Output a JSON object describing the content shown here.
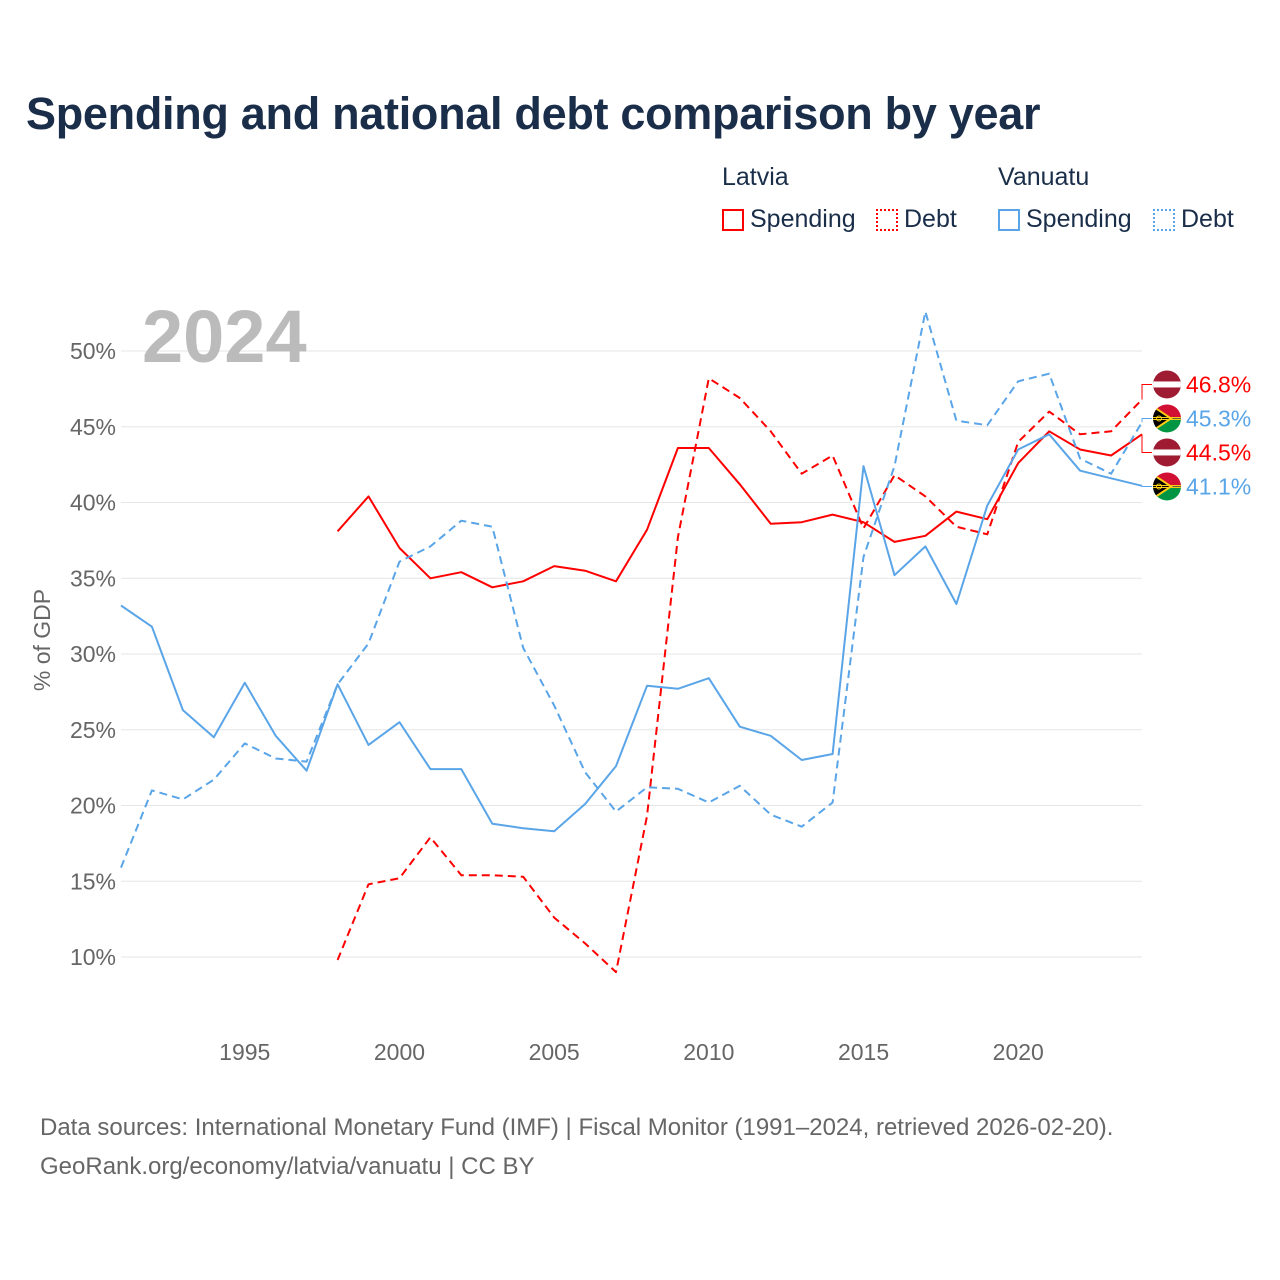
{
  "title": "Spending and national debt comparison by year",
  "legend": {
    "groups": [
      {
        "country": "Latvia",
        "items": [
          {
            "label": "Spending",
            "style": "solid",
            "color": "#ff0000"
          },
          {
            "label": "Debt",
            "style": "dotted",
            "color": "#ff0000"
          }
        ]
      },
      {
        "country": "Vanuatu",
        "items": [
          {
            "label": "Spending",
            "style": "solid",
            "color": "#5aa5e8"
          },
          {
            "label": "Debt",
            "style": "dotted",
            "color": "#5aa5e8"
          }
        ]
      }
    ]
  },
  "year_label": "2024",
  "source": {
    "line1": "Data sources: International Monetary Fund (IMF) | Fiscal Monitor (1991–2024, retrieved 2026-02-20).",
    "line2": "GeoRank.org/economy/latvia/vanuatu | CC BY"
  },
  "chart_data": {
    "type": "line",
    "title": "Spending and national debt comparison by year",
    "xlabel": "",
    "ylabel": "% of GDP",
    "xlim": [
      1991,
      2024
    ],
    "ylim": [
      10,
      50
    ],
    "x_ticks": [
      "1995",
      "2000",
      "2005",
      "2010",
      "2015",
      "2020"
    ],
    "y_ticks": [
      "10%",
      "15%",
      "20%",
      "25%",
      "30%",
      "35%",
      "40%",
      "45%",
      "50%"
    ],
    "grid": true,
    "legend_position": "top-right",
    "series": [
      {
        "name": "Latvia Spending",
        "country": "Latvia",
        "color": "#ff0000",
        "dash": false,
        "end_label": "44.5%",
        "start_year": 1998,
        "values": [
          38.1,
          40.4,
          37.0,
          35.0,
          35.4,
          34.4,
          34.8,
          35.8,
          35.5,
          34.8,
          38.2,
          43.6,
          43.6,
          41.2,
          38.6,
          38.7,
          39.2,
          38.7,
          37.4,
          37.8,
          39.4,
          38.9,
          42.6,
          44.7,
          43.5,
          43.1,
          44.5
        ]
      },
      {
        "name": "Latvia Debt",
        "country": "Latvia",
        "color": "#ff0000",
        "dash": true,
        "end_label": "46.8%",
        "start_year": 1998,
        "values": [
          9.8,
          14.8,
          15.2,
          17.9,
          15.4,
          15.4,
          15.3,
          12.6,
          10.9,
          9.0,
          19.3,
          37.7,
          48.2,
          46.9,
          44.7,
          41.9,
          43.1,
          38.3,
          41.8,
          40.4,
          38.4,
          37.9,
          44.0,
          46.0,
          44.5,
          44.7,
          46.8
        ]
      },
      {
        "name": "Vanuatu Spending",
        "country": "Vanuatu",
        "color": "#5aa5e8",
        "dash": false,
        "end_label": "41.1%",
        "start_year": 1991,
        "values": [
          33.2,
          31.8,
          26.3,
          24.5,
          28.1,
          24.6,
          22.3,
          28.0,
          24.0,
          25.5,
          22.4,
          22.4,
          18.8,
          18.5,
          18.3,
          20.1,
          22.6,
          27.9,
          27.7,
          28.4,
          25.2,
          24.6,
          23.0,
          23.4,
          42.4,
          35.2,
          37.1,
          33.3,
          39.8,
          43.5,
          44.5,
          42.1,
          41.6,
          41.1
        ]
      },
      {
        "name": "Vanuatu Debt",
        "country": "Vanuatu",
        "color": "#5aa5e8",
        "dash": true,
        "end_label": "45.3%",
        "start_year": 1991,
        "values": [
          15.9,
          21.0,
          20.4,
          21.7,
          24.1,
          23.1,
          22.9,
          28.0,
          30.7,
          36.1,
          37.1,
          38.8,
          38.4,
          30.4,
          26.6,
          22.2,
          19.6,
          21.2,
          21.1,
          20.2,
          21.3,
          19.4,
          18.6,
          20.2,
          36.4,
          42.4,
          52.6,
          45.4,
          45.1,
          48.0,
          48.5,
          42.9,
          41.9,
          45.3
        ]
      }
    ]
  }
}
